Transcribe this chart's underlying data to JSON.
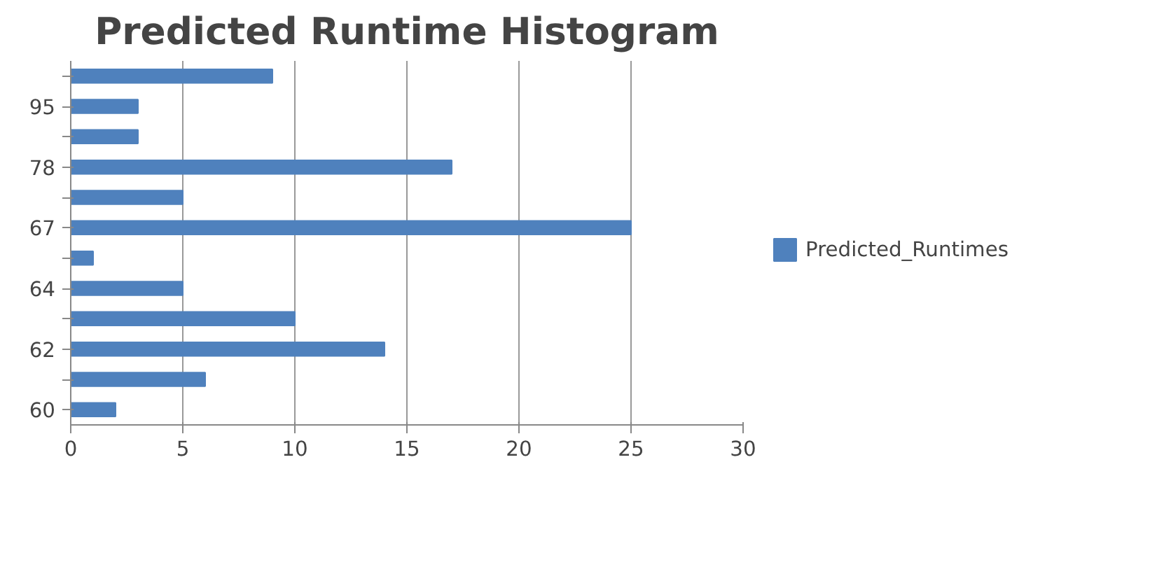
{
  "chart_data": {
    "type": "bar",
    "orientation": "horizontal",
    "title": "Predicted Runtime Histogram",
    "categories": [
      null,
      "95",
      null,
      "78",
      null,
      "67",
      null,
      "64",
      null,
      "62",
      null,
      "60"
    ],
    "series": [
      {
        "name": "Predicted_Runtimes",
        "color": "#4f81bd",
        "values": [
          9,
          3,
          3,
          17,
          5,
          25,
          1,
          5,
          10,
          14,
          6,
          2
        ]
      }
    ],
    "xlim": [
      0,
      30
    ],
    "xticks": [
      0,
      5,
      10,
      15,
      20,
      25,
      30
    ],
    "grid": "x",
    "legend": "right"
  }
}
